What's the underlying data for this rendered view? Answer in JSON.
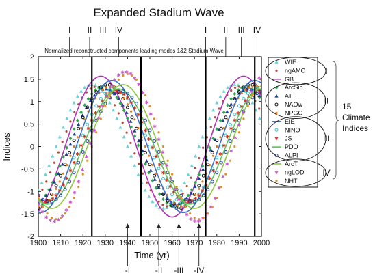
{
  "chart_data": {
    "type": "line",
    "title": "Expanded Stadium Wave",
    "subtitle": "Normalized reconstructed components leading modes 1&2 Stadium Wave",
    "xlabel": "Time (yr)",
    "ylabel": "Indices",
    "xlim": [
      1900,
      2000
    ],
    "ylim": [
      -2,
      2
    ],
    "x_ticks": [
      "1900",
      "1910",
      "1920",
      "1930",
      "1940",
      "1950",
      "1960",
      "1970",
      "1980",
      "1990",
      "2000"
    ],
    "y_ticks": [
      "-2",
      "-1.5",
      "-1",
      "-0.5",
      "0",
      "0.5",
      "1",
      "1.5",
      "2"
    ],
    "vertical_lines": [
      1924,
      1946,
      1975,
      1997
    ],
    "top_markers": [
      {
        "label": "I",
        "x": 1914
      },
      {
        "label": "II",
        "x": 1923
      },
      {
        "label": "III",
        "x": 1929
      },
      {
        "label": "IV",
        "x": 1936
      },
      {
        "label": "I",
        "x": 1975
      },
      {
        "label": "II",
        "x": 1984
      },
      {
        "label": "III",
        "x": 1991
      },
      {
        "label": "IV",
        "x": 1998
      }
    ],
    "bottom_markers": [
      {
        "label": "-I",
        "x": 1940
      },
      {
        "label": "-II",
        "x": 1954
      },
      {
        "label": "-III",
        "x": 1963
      },
      {
        "label": "-IV",
        "x": 1972
      }
    ],
    "series": [
      {
        "name": "WIE",
        "color": "#6ed3d8",
        "marker": "triangle",
        "phase": 1924,
        "amp": 1.45
      },
      {
        "name": "ngAMO",
        "color": "#b04a3a",
        "marker": "dot",
        "phase": 1926,
        "amp": 1.4
      },
      {
        "name": "GB",
        "color": "#b22fb8",
        "marker": "line",
        "phase": 1928,
        "amp": 1.65
      },
      {
        "name": "ArcSib",
        "color": "#2fa84f",
        "marker": "diamond",
        "phase": 1929,
        "amp": 1.4
      },
      {
        "name": "AT",
        "color": "#1f3e8a",
        "marker": "triangle",
        "phase": 1930,
        "amp": 1.35
      },
      {
        "name": "NAOw",
        "color": "#111111",
        "marker": "circle-open",
        "phase": 1931,
        "amp": 1.45
      },
      {
        "name": "NPGO",
        "color": "#e07a1a",
        "marker": "dot",
        "phase": 1932,
        "amp": 1.4
      },
      {
        "name": "EIE",
        "color": "#3a6fd0",
        "marker": "line",
        "phase": 1933,
        "amp": 1.55
      },
      {
        "name": "NINO",
        "color": "#3cc0c8",
        "marker": "circle-open",
        "phase": 1934,
        "amp": 1.35
      },
      {
        "name": "JS",
        "color": "#d0301c",
        "marker": "star",
        "phase": 1935,
        "amp": 1.3
      },
      {
        "name": "PDO",
        "color": "#5ac15a",
        "marker": "line",
        "phase": 1936,
        "amp": 1.35
      },
      {
        "name": "ALPI",
        "color": "#2a3fb0",
        "marker": "circle-open",
        "phase": 1937,
        "amp": 1.3
      },
      {
        "name": "ArcT",
        "color": "#8dc63f",
        "marker": "line",
        "phase": 1938,
        "amp": 1.45
      },
      {
        "name": "ngLOD",
        "color": "#c857c8",
        "marker": "star",
        "phase": 1939,
        "amp": 1.75
      },
      {
        "name": "NHT",
        "color": "#e0902a",
        "marker": "dot",
        "phase": 1940,
        "amp": 1.7
      }
    ],
    "period_years": 64,
    "legend_position": "right",
    "legend_groups": [
      {
        "label": "I",
        "members": [
          "WIE",
          "ngAMO",
          "GB"
        ]
      },
      {
        "label": "II",
        "members": [
          "ArcSib",
          "AT",
          "NAOw",
          "NPGO"
        ]
      },
      {
        "label": "III",
        "members": [
          "EIE",
          "NINO",
          "JS",
          "PDO",
          "ALPI"
        ]
      },
      {
        "label": "IV",
        "members": [
          "ArcT",
          "ngLOD",
          "NHT"
        ]
      }
    ],
    "group_annotation": "15 Climate Indices",
    "grid": false
  }
}
